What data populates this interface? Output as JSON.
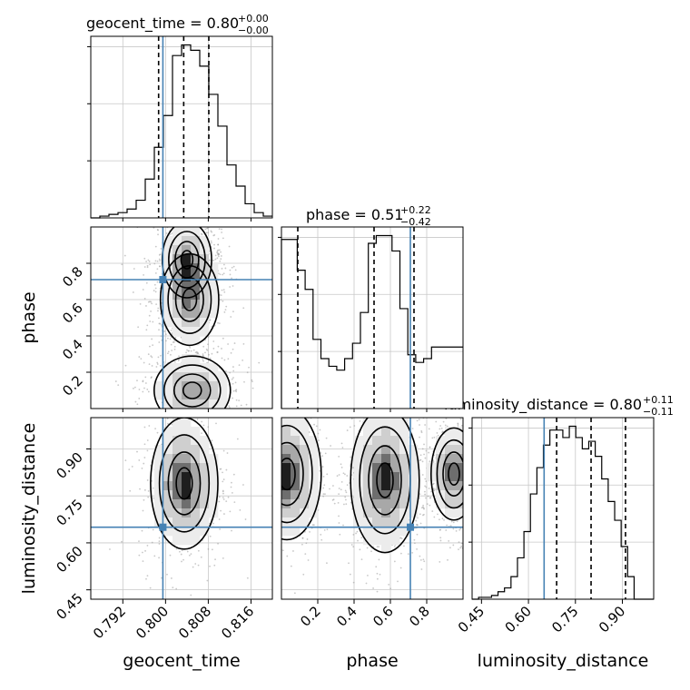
{
  "chart_data": {
    "type": "corner",
    "grid": true,
    "colors": {
      "truth": "#4682b4",
      "contour": "#000000",
      "hist": "#000000",
      "grid": "#c8c8c8"
    },
    "parameters": [
      {
        "name": "geocent_time",
        "axis_label": "geocent_time",
        "range": [
          0.786,
          0.82
        ],
        "ticks": [
          0.792,
          0.8,
          0.808,
          0.816
        ],
        "tick_labels": [
          "0.792",
          "0.800",
          "0.808",
          "0.816"
        ],
        "truth": 0.7995,
        "quantiles": [
          0.7987,
          0.8034,
          0.8081
        ],
        "title_main": "geocent_time = 0.80",
        "title_sup": "+0.00",
        "title_sub": "−0.00",
        "hist_edges_start": 0.786,
        "hist_bin_width": 0.0017,
        "hist_counts": [
          0,
          1,
          2,
          3,
          5,
          10,
          22,
          40,
          58,
          92,
          98,
          95,
          86,
          70,
          52,
          30,
          18,
          8,
          3,
          1
        ]
      },
      {
        "name": "phase",
        "axis_label": "phase",
        "range": [
          0.0,
          1.0
        ],
        "ticks": [
          0.2,
          0.4,
          0.6,
          0.8
        ],
        "tick_labels": [
          "0.2",
          "0.4",
          "0.6",
          "0.8"
        ],
        "truth": 0.71,
        "quantiles": [
          0.09,
          0.51,
          0.73
        ],
        "title_main": "phase = 0.51",
        "title_sup": "+0.22",
        "title_sub": "−0.42",
        "hist_edges_start": 0.0,
        "hist_bin_width": 0.0435,
        "hist_counts": [
          88,
          88,
          72,
          62,
          36,
          26,
          22,
          20,
          26,
          34,
          50,
          86,
          90,
          90,
          82,
          52,
          28,
          24,
          26,
          32,
          32,
          32,
          32
        ]
      },
      {
        "name": "luminosity_distance",
        "axis_label": "luminosity_distance",
        "range": [
          0.42,
          1.0
        ],
        "ticks": [
          0.45,
          0.6,
          0.75,
          0.9
        ],
        "tick_labels": [
          "0.45",
          "0.60",
          "0.75",
          "0.90"
        ],
        "truth": 0.65,
        "quantiles": [
          0.69,
          0.8,
          0.91
        ],
        "title_main": "luminosity_distance = 0.80",
        "title_sup": "+0.11",
        "title_sub": "−0.11",
        "hist_edges_start": 0.42,
        "hist_bin_width": 0.0207,
        "hist_counts": [
          0,
          1,
          1,
          2,
          4,
          6,
          12,
          22,
          36,
          56,
          70,
          82,
          90,
          90,
          86,
          92,
          86,
          80,
          84,
          76,
          64,
          52,
          42,
          28,
          12,
          0,
          0,
          0
        ]
      }
    ],
    "pairs": [
      {
        "x": "geocent_time",
        "y": "phase",
        "modes": [
          {
            "cx": 0.8045,
            "cy": 0.6,
            "sx": 0.0026,
            "sy": 0.12
          },
          {
            "cx": 0.805,
            "cy": 0.1,
            "sx": 0.0034,
            "sy": 0.09
          },
          {
            "cx": 0.804,
            "cy": 0.82,
            "sx": 0.0022,
            "sy": 0.1
          }
        ]
      },
      {
        "x": "geocent_time",
        "y": "luminosity_distance",
        "modes": [
          {
            "cx": 0.8035,
            "cy": 0.79,
            "sx": 0.003,
            "sy": 0.1
          }
        ]
      },
      {
        "x": "phase",
        "y": "luminosity_distance",
        "modes": [
          {
            "cx": 0.57,
            "cy": 0.8,
            "sx": 0.09,
            "sy": 0.11
          },
          {
            "cx": 0.03,
            "cy": 0.82,
            "sx": 0.09,
            "sy": 0.1
          },
          {
            "cx": 0.95,
            "cy": 0.82,
            "sx": 0.06,
            "sy": 0.07
          }
        ]
      }
    ]
  }
}
